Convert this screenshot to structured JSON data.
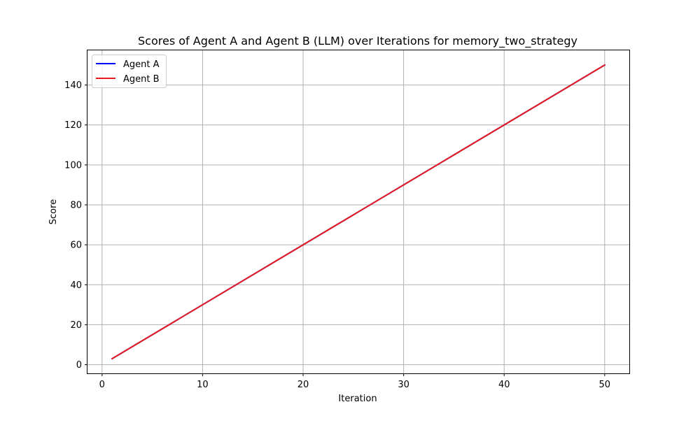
{
  "chart_data": {
    "type": "line",
    "title": "Scores of Agent A and Agent B (LLM) over Iterations for memory_two_strategy",
    "xlabel": "Iteration",
    "ylabel": "Score",
    "xlim": [
      -1.45,
      52.45
    ],
    "ylim": [
      -4.35,
      157.35
    ],
    "xticks": [
      0,
      10,
      20,
      30,
      40,
      50
    ],
    "yticks": [
      0,
      20,
      40,
      60,
      80,
      100,
      120,
      140
    ],
    "grid": true,
    "legend_position": "top-left",
    "series": [
      {
        "name": "Agent A",
        "color": "#0000ff",
        "x": [
          1,
          50
        ],
        "y": [
          3,
          150
        ]
      },
      {
        "name": "Agent B",
        "color": "#e41a1c",
        "x": [
          1,
          50
        ],
        "y": [
          3,
          150
        ]
      }
    ]
  }
}
